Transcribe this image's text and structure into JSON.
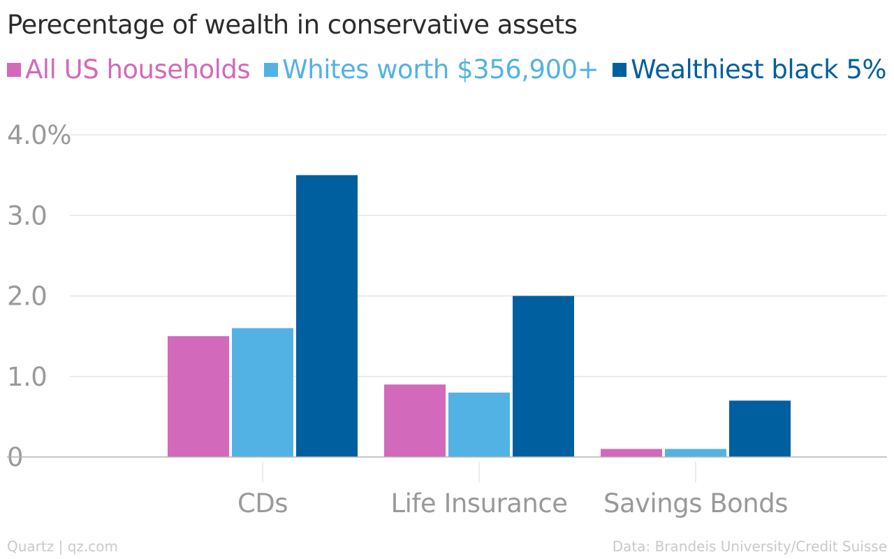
{
  "title": "Perecentage of wealth in conservative assets",
  "colors": {
    "all_us": "#d369ba",
    "whites": "#53b2e4",
    "black": "#005f9f",
    "axis_text": "#999999",
    "grid": "#e5e5e5"
  },
  "chart_data": {
    "type": "bar",
    "title": "Perecentage of wealth in conservative assets",
    "categories": [
      "CDs",
      "Life Insurance",
      "Savings Bonds"
    ],
    "series": [
      {
        "name": "All US households",
        "color": "#d369ba",
        "values": [
          1.5,
          0.9,
          0.1
        ]
      },
      {
        "name": "Whites worth $356,900+",
        "color": "#53b2e4",
        "values": [
          1.6,
          0.8,
          0.1
        ]
      },
      {
        "name": "Wealthiest black 5%",
        "color": "#005f9f",
        "values": [
          3.5,
          2.0,
          0.7
        ]
      }
    ],
    "yticks": [
      {
        "value": 0,
        "label": "0"
      },
      {
        "value": 1,
        "label": "1.0"
      },
      {
        "value": 2,
        "label": "2.0"
      },
      {
        "value": 3,
        "label": "3.0"
      },
      {
        "value": 4,
        "label": "4.0%"
      }
    ],
    "ylim": [
      0,
      4.0
    ],
    "xlabel": "",
    "ylabel": "",
    "grid": true,
    "legend_position": "top-left"
  },
  "footer": {
    "source_left": "Quartz | qz.com",
    "source_right": "Data: Brandeis University/Credit Suisse"
  }
}
